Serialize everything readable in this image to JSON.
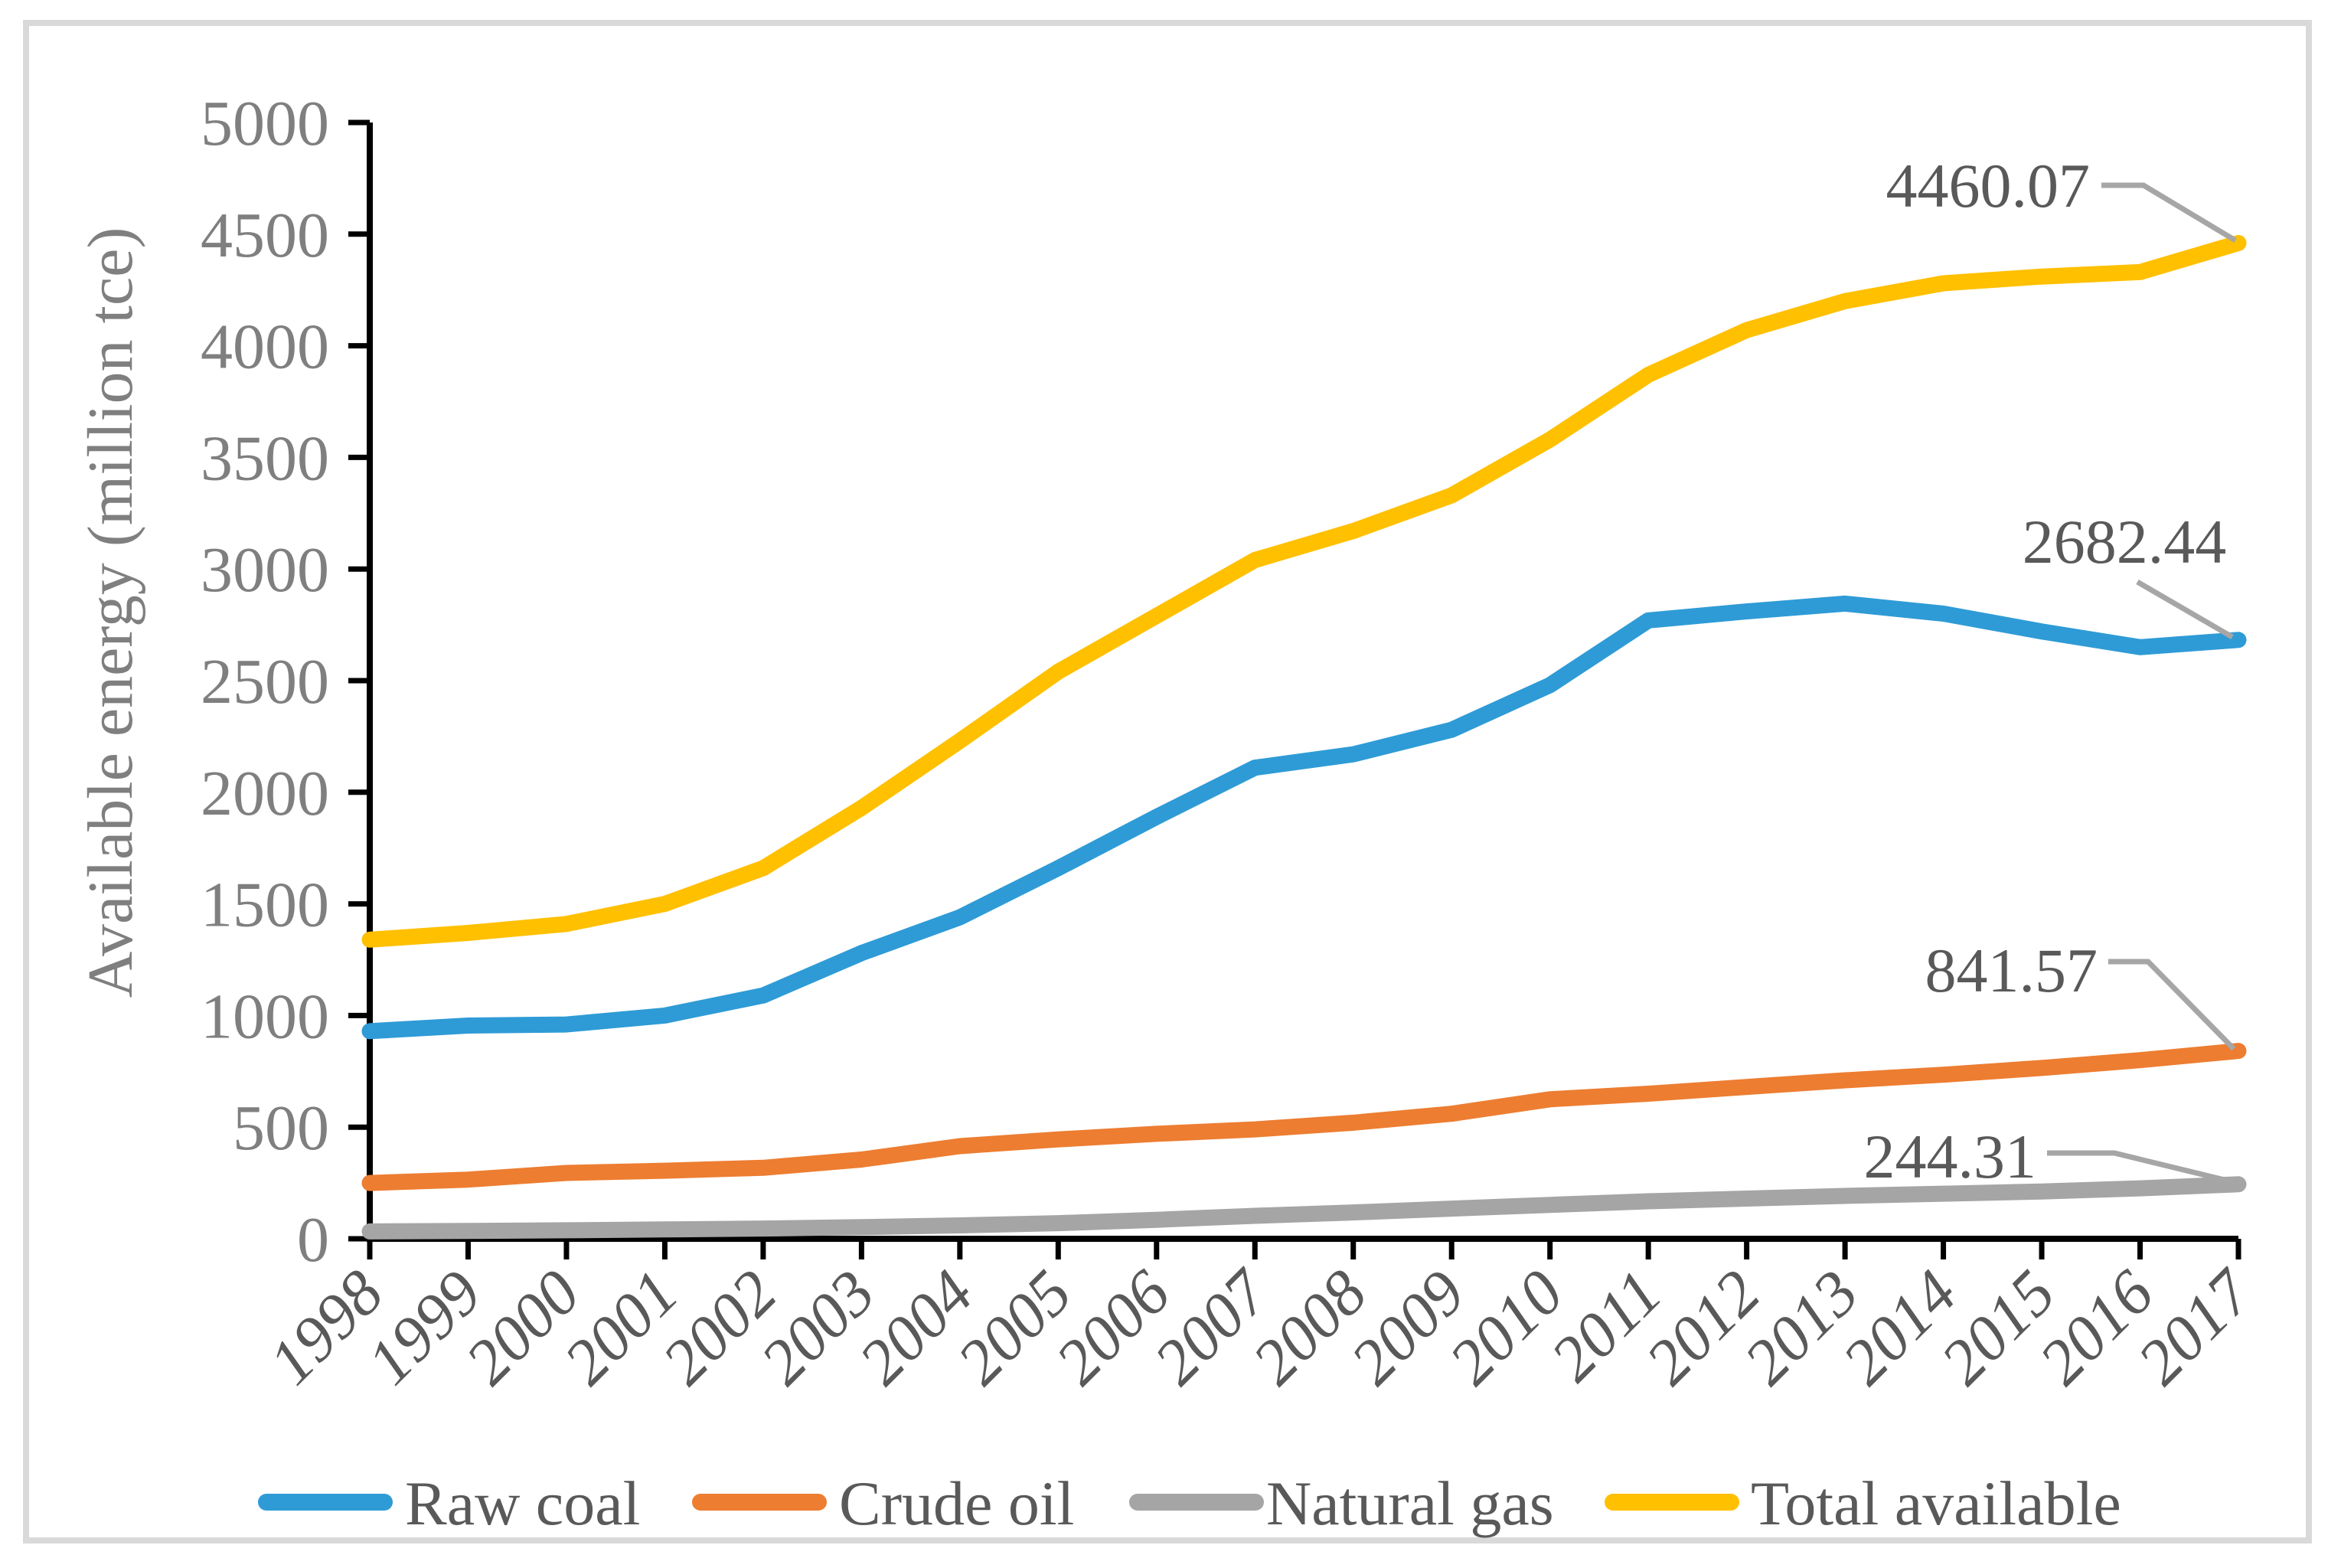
{
  "figure": {
    "background": "#ffffff",
    "border_color": "#d9d9d9"
  },
  "chart_data": {
    "type": "line",
    "title": "",
    "xlabel": "",
    "ylabel": "Available energy (million tce)",
    "ylim": [
      0,
      5000
    ],
    "y_tick_step": 500,
    "y_ticks": [
      0,
      500,
      1000,
      1500,
      2000,
      2500,
      3000,
      3500,
      4000,
      4500,
      5000
    ],
    "grid": false,
    "legend_position": "bottom",
    "axis_color": "#000000",
    "tick_label_color": "#7f7f7f",
    "x_tick_label_color": "#595959",
    "data_label_color": "#595959",
    "leader_line_color": "#a6a6a6",
    "categories": [
      "1998",
      "1999",
      "2000",
      "2001",
      "2002",
      "2003",
      "2004",
      "2005",
      "2006",
      "2007",
      "2008",
      "2009",
      "2010",
      "2011",
      "2012",
      "2013",
      "2014",
      "2015",
      "2016",
      "2017"
    ],
    "series": [
      {
        "name": "Raw coal",
        "color": "#2e9bd6",
        "end_label": "2682.44",
        "values": [
          930,
          955,
          960,
          1000,
          1090,
          1280,
          1440,
          1660,
          1890,
          2110,
          2170,
          2280,
          2480,
          2770,
          2810,
          2845,
          2800,
          2720,
          2650,
          2682.44
        ]
      },
      {
        "name": "Crude oil",
        "color": "#ed7d31",
        "end_label": "841.57",
        "values": [
          250,
          265,
          295,
          305,
          318,
          355,
          415,
          445,
          470,
          490,
          520,
          560,
          625,
          650,
          680,
          710,
          735,
          765,
          800,
          841.57
        ]
      },
      {
        "name": "Natural gas",
        "color": "#a5a5a5",
        "end_label": "244.31",
        "values": [
          33,
          35,
          38,
          42,
          46,
          52,
          60,
          70,
          85,
          103,
          118,
          135,
          152,
          168,
          180,
          192,
          202,
          212,
          226,
          244.31
        ]
      },
      {
        "name": "Total available",
        "color": "#ffc000",
        "end_label": "4460.07",
        "values": [
          1340,
          1370,
          1410,
          1500,
          1660,
          1930,
          2230,
          2540,
          2790,
          3040,
          3170,
          3330,
          3580,
          3870,
          4070,
          4200,
          4280,
          4310,
          4330,
          4460.07
        ]
      }
    ]
  }
}
